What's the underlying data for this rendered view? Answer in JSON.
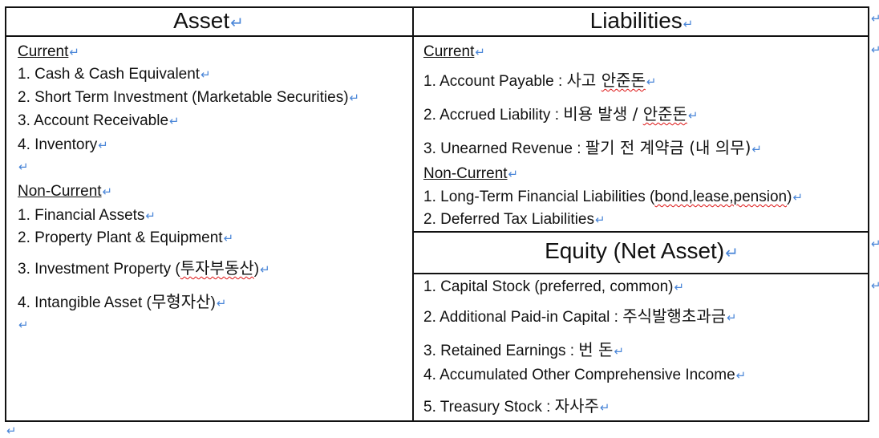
{
  "asset": {
    "header": "Asset",
    "current_label": "Current",
    "current_items": [
      "1. Cash & Cash Equivalent",
      "2. Short Term Investment (Marketable Securities)",
      "3. Account Receivable",
      "4. Inventory"
    ],
    "noncurrent_label": "Non-Current",
    "noncurrent_items": [
      "1.  Financial  Assets",
      "2.  Property  Plant  &  Equipment",
      "3.  Investment  Property  (",
      "4. Intangible Asset ("
    ],
    "noncurrent_item3_korean": "투자부동산",
    "noncurrent_item3_tail": ")",
    "noncurrent_item4_korean": "무형자산",
    "noncurrent_item4_tail": ")"
  },
  "liabilities": {
    "header": "Liabilities",
    "current_label": "Current",
    "item1_prefix": "1. Account Payable : ",
    "item1_korean_a": "사고 ",
    "item1_korean_b": "안준돈",
    "item2_prefix": "2. Accrued Liability : ",
    "item2_korean_a": "비용  발생  /  ",
    "item2_korean_b": "안준돈",
    "item3_prefix": "3. Unearned Revenue : ",
    "item3_korean": "팔기  전  계약금  (내  의무)",
    "noncurrent_label": "Non-Current",
    "nc_item1_prefix": "1. Long-Term Financial Liabilities (",
    "nc_item1_paren": "bond,lease,pension",
    "nc_item1_tail": ")",
    "nc_item2": "2. Deferred Tax Liabilities"
  },
  "equity": {
    "header": "Equity  (Net  Asset)",
    "item1": "1. Capital Stock (preferred, common)",
    "item2_prefix": "2. Additional Paid-in Capital : ",
    "item2_korean": "주식발행초과금",
    "item3_prefix": "3. Retained Earnings : ",
    "item3_korean": "번  돈",
    "item4": "4. Accumulated Other Comprehensive Income",
    "item5_prefix": "5. Treasury Stock : ",
    "item5_korean": "자사주"
  },
  "return_mark": "↵",
  "colors": {
    "return_mark": "#4a86d8",
    "spellcheck": "#d11",
    "border": "#111"
  }
}
